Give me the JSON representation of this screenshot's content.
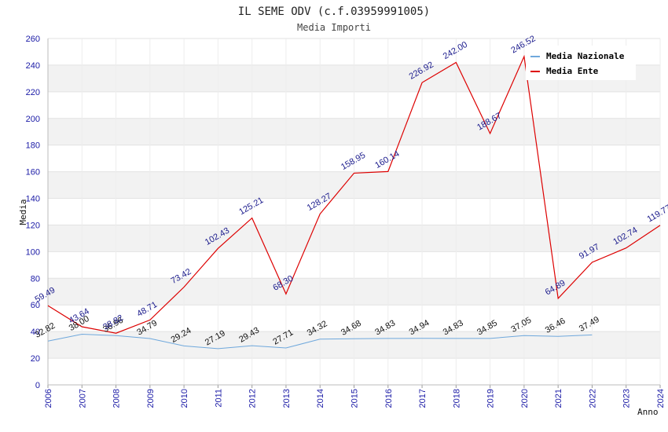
{
  "chart_data": {
    "type": "line",
    "title": "IL SEME ODV (c.f.03959991005)",
    "subtitle": "Media Importi",
    "xlabel": "Anno",
    "ylabel": "Media",
    "ylim": [
      0,
      260
    ],
    "yticks": [
      0,
      20,
      40,
      60,
      80,
      100,
      120,
      140,
      160,
      180,
      200,
      220,
      240,
      260
    ],
    "categories": [
      "2006",
      "2007",
      "2008",
      "2009",
      "2010",
      "2011",
      "2012",
      "2013",
      "2014",
      "2015",
      "2016",
      "2017",
      "2018",
      "2019",
      "2020",
      "2021",
      "2022",
      "2023",
      "2024"
    ],
    "legend_position": "top-right",
    "series": [
      {
        "name": "Media Nazionale",
        "color": "#6fa8dc",
        "values": [
          32.82,
          38.0,
          36.96,
          34.79,
          29.24,
          27.19,
          29.43,
          27.71,
          34.32,
          34.68,
          34.83,
          34.94,
          34.83,
          34.85,
          37.05,
          36.46,
          37.49,
          null,
          null
        ],
        "labels": [
          "32.82",
          "38.00",
          "36.96",
          "34.79",
          "29.24",
          "27.19",
          "29.43",
          "27.71",
          "34.32",
          "34.68",
          "34.83",
          "34.94",
          "34.83",
          "34.85",
          "37.05",
          "36.46",
          "37.49",
          null,
          null
        ]
      },
      {
        "name": "Media Ente",
        "color": "#dd0000",
        "values": [
          59.49,
          43.64,
          38.82,
          48.71,
          73.42,
          102.43,
          125.21,
          68.3,
          128.27,
          158.95,
          160.14,
          226.92,
          242.0,
          188.67,
          246.52,
          64.89,
          91.97,
          102.74,
          119.77
        ],
        "labels": [
          "59.49",
          "43.64",
          "38.82",
          "48.71",
          "73.42",
          "102.43",
          "125.21",
          "68.30",
          "128.27",
          "158.95",
          "160.14",
          "226.92",
          "242.00",
          "188.67",
          "246.52",
          "64.89",
          "91.97",
          "102.74",
          "119.77"
        ]
      }
    ]
  }
}
